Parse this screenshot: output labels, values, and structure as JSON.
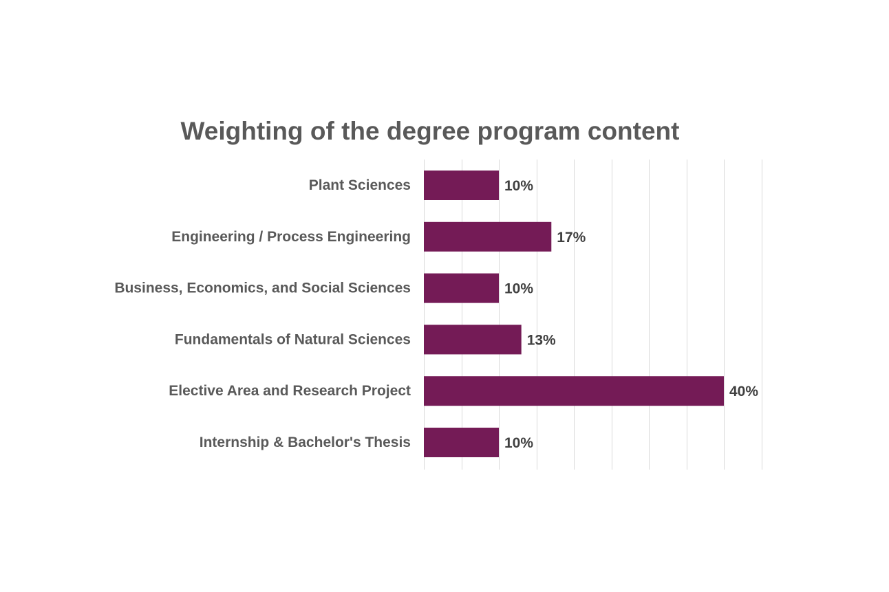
{
  "chart_data": {
    "type": "bar",
    "orientation": "horizontal",
    "title": "Weighting of the degree program content",
    "categories": [
      "Plant Sciences",
      "Engineering / Process Engineering",
      "Business, Economics, and Social Sciences",
      "Fundamentals of Natural Sciences",
      "Elective Area and Research Project",
      "Internship & Bachelor's Thesis"
    ],
    "values": [
      10,
      17,
      10,
      13,
      40,
      10
    ],
    "data_labels": [
      "10%",
      "17%",
      "10%",
      "13%",
      "40%",
      "10%"
    ],
    "xlabel": "",
    "ylabel": "",
    "xlim": [
      0,
      45
    ],
    "grid_step": 5,
    "grid": true,
    "legend": "none",
    "bar_color": "#741b56"
  }
}
